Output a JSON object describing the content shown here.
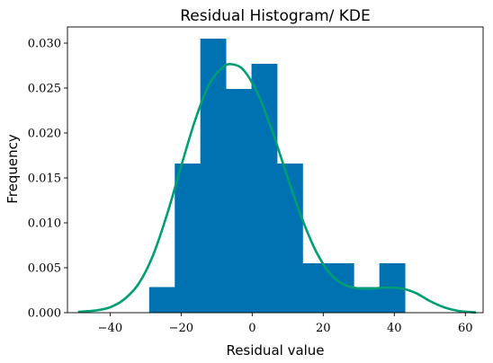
{
  "chart_data": {
    "type": "bar",
    "title": "Residual Histogram/ KDE",
    "xlabel": "Residual value",
    "ylabel": "Frequency",
    "xlim": [
      -52,
      65
    ],
    "ylim": [
      0,
      0.0318
    ],
    "xticks": [
      -40,
      -20,
      0,
      20,
      40,
      60
    ],
    "xtick_labels": [
      "−40",
      "−20",
      "0",
      "20",
      "40",
      "60"
    ],
    "yticks": [
      0.0,
      0.005,
      0.01,
      0.015,
      0.02,
      0.025,
      0.03
    ],
    "ytick_labels": [
      "0.000",
      "0.005",
      "0.010",
      "0.015",
      "0.020",
      "0.025",
      "0.030"
    ],
    "grid": false,
    "histogram": {
      "bin_edges": [
        -29.0,
        -21.8,
        -14.6,
        -7.4,
        -0.2,
        7.0,
        14.2,
        21.4,
        28.6,
        35.8,
        43.0
      ],
      "density": [
        0.00285,
        0.0166,
        0.0305,
        0.0249,
        0.0277,
        0.0166,
        0.0055,
        0.0055,
        0.00285,
        0.0055
      ],
      "color": "#0072b2"
    },
    "kde": {
      "color": "#009e73",
      "x": [
        -49,
        -44,
        -40,
        -36,
        -32,
        -28,
        -24,
        -20,
        -16,
        -12,
        -8,
        -5,
        -2,
        2,
        6,
        10,
        14,
        18,
        22,
        26,
        30,
        34,
        38,
        42,
        46,
        50,
        54,
        58,
        63
      ],
      "y": [
        0.0001,
        0.00025,
        0.0006,
        0.0015,
        0.0032,
        0.0063,
        0.0109,
        0.0163,
        0.0215,
        0.0255,
        0.0274,
        0.0276,
        0.0268,
        0.024,
        0.0198,
        0.015,
        0.0105,
        0.0068,
        0.0043,
        0.0031,
        0.0027,
        0.0027,
        0.0028,
        0.0027,
        0.0022,
        0.0013,
        0.0006,
        0.0002,
        3e-05
      ]
    }
  }
}
